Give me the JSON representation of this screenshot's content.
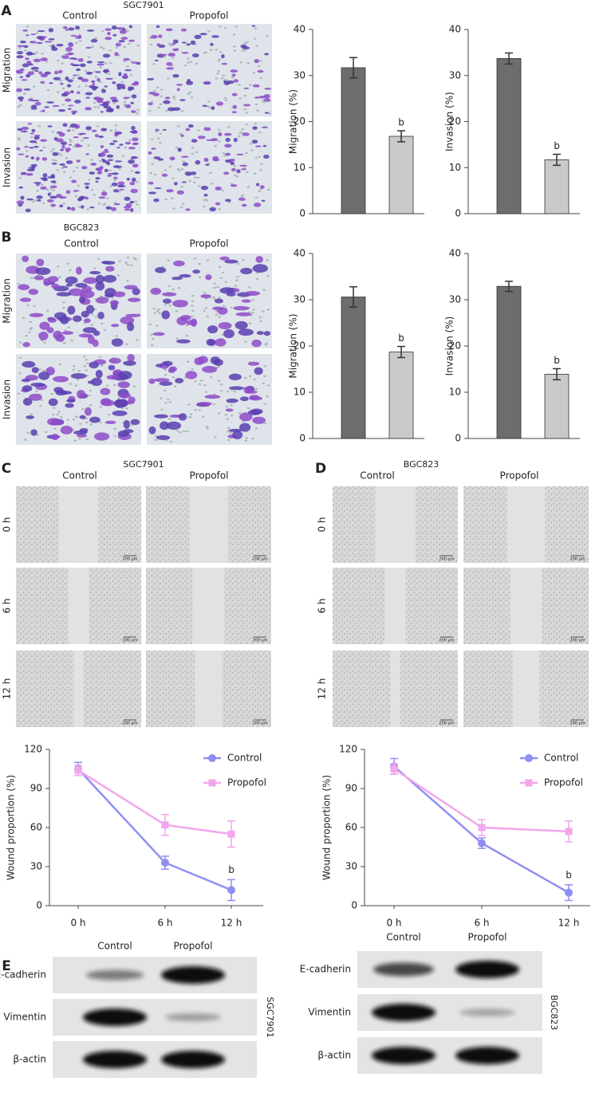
{
  "panels": {
    "A": {
      "label": "A",
      "cell_line": "SGC7901",
      "columns": [
        "Control",
        "Propofol"
      ],
      "rows": [
        "Migration",
        "Invasion"
      ]
    },
    "B": {
      "label": "B",
      "cell_line": "BGC823",
      "columns": [
        "Control",
        "Propofol"
      ],
      "rows": [
        "Migration",
        "Invasion"
      ]
    },
    "C": {
      "label": "C",
      "cell_line": "SGC7901",
      "columns": [
        "Control",
        "Propofol"
      ],
      "rows": [
        "0 h",
        "6 h",
        "12 h"
      ],
      "scale_bar": "200 μm"
    },
    "D": {
      "label": "D",
      "cell_line": "BGC823",
      "columns": [
        "Control",
        "Propofol"
      ],
      "rows": [
        "0 h",
        "6 h",
        "12 h"
      ],
      "scale_bar": "200 μm"
    },
    "E": {
      "label": "E",
      "blots": [
        {
          "cell_line": "SGC7901",
          "columns": [
            "Control",
            "Propofol"
          ],
          "rows": [
            "E-cadherin",
            "Vimentin",
            "β-actin"
          ]
        },
        {
          "cell_line": "BGC823",
          "columns": [
            "Control",
            "Propofol"
          ],
          "rows": [
            "E-cadherin",
            "Vimentin",
            "β-actin"
          ]
        }
      ]
    }
  },
  "chart_data": [
    {
      "type": "bar",
      "ylabel": "Migration (%)",
      "categories": [
        null,
        null
      ],
      "values": [
        31.7,
        16.8
      ],
      "errors": [
        2.2,
        1.2
      ],
      "colors": [
        "#6d6d6d",
        "#c9c9c9"
      ],
      "significance": [
        null,
        "b"
      ],
      "ylim": [
        0,
        40
      ],
      "yticks": [
        0,
        10,
        20,
        30,
        40
      ]
    },
    {
      "type": "bar",
      "ylabel": "Invasion (%)",
      "categories": [
        null,
        null
      ],
      "values": [
        33.7,
        11.7
      ],
      "errors": [
        1.2,
        1.2
      ],
      "colors": [
        "#6d6d6d",
        "#c9c9c9"
      ],
      "significance": [
        null,
        "b"
      ],
      "ylim": [
        0,
        40
      ],
      "yticks": [
        0,
        10,
        20,
        30,
        40
      ]
    },
    {
      "type": "bar",
      "ylabel": "Migration (%)",
      "categories": [
        null,
        null
      ],
      "values": [
        30.6,
        18.7
      ],
      "errors": [
        2.2,
        1.2
      ],
      "colors": [
        "#6d6d6d",
        "#c9c9c9"
      ],
      "significance": [
        null,
        "b"
      ],
      "ylim": [
        0,
        40
      ],
      "yticks": [
        0,
        10,
        20,
        30,
        40
      ]
    },
    {
      "type": "bar",
      "ylabel": "Invasion (%)",
      "categories": [
        null,
        null
      ],
      "values": [
        32.9,
        13.9
      ],
      "errors": [
        1.1,
        1.2
      ],
      "colors": [
        "#6d6d6d",
        "#c9c9c9"
      ],
      "significance": [
        null,
        "b"
      ],
      "ylim": [
        0,
        40
      ],
      "yticks": [
        0,
        10,
        20,
        30,
        40
      ]
    },
    {
      "type": "line",
      "ylabel": "Wound proportion (%)",
      "categories": [
        "0 h",
        "6 h",
        "12 h"
      ],
      "ylim": [
        0,
        120
      ],
      "yticks": [
        0,
        30,
        60,
        90,
        120
      ],
      "series": [
        {
          "name": "Control",
          "color": "#8f8ff2",
          "marker": "circle",
          "values": [
            105,
            33,
            12
          ],
          "errors": [
            5,
            5,
            8
          ],
          "significance": [
            null,
            null,
            "b"
          ]
        },
        {
          "name": "Propofol",
          "color": "#f2a6ec",
          "marker": "square",
          "values": [
            104,
            62,
            55
          ],
          "errors": [
            4,
            8,
            10
          ]
        }
      ]
    },
    {
      "type": "line",
      "ylabel": "Wound proportion (%)",
      "categories": [
        "0 h",
        "6 h",
        "12 h"
      ],
      "ylim": [
        0,
        120
      ],
      "yticks": [
        0,
        30,
        60,
        90,
        120
      ],
      "series": [
        {
          "name": "Control",
          "color": "#8f8ff2",
          "marker": "circle",
          "values": [
            107,
            48,
            10
          ],
          "errors": [
            6,
            4,
            6
          ],
          "significance": [
            null,
            null,
            "b"
          ]
        },
        {
          "name": "Propofol",
          "color": "#f2a6ec",
          "marker": "square",
          "values": [
            105,
            60,
            57
          ],
          "errors": [
            4,
            6,
            8
          ]
        }
      ]
    }
  ]
}
